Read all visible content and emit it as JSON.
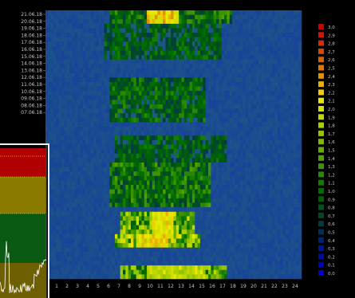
{
  "chart_data": {
    "type": "heatmap",
    "y_categories": [
      "21.06.18",
      "20.06.18",
      "19.06.18",
      "18.06.18",
      "17.06.18",
      "16.06.18",
      "15.06.18",
      "14.06.18",
      "13.06.18",
      "12.06.18",
      "11.06.18",
      "10.06.18",
      "09.06.18",
      "08.06.18",
      "07.06.18"
    ],
    "x_ticks": [
      "1",
      "2",
      "3",
      "4",
      "5",
      "6",
      "7",
      "8",
      "9",
      "10",
      "11",
      "12",
      "13",
      "14",
      "15",
      "16",
      "17",
      "18",
      "19",
      "20",
      "21",
      "22",
      "23",
      "24"
    ],
    "legend": {
      "labels": [
        "3,0",
        "2,9",
        "2,8",
        "2,7",
        "2,6",
        "2,5",
        "2,4",
        "2,3",
        "2,2",
        "2,1",
        "2,0",
        "1,9",
        "1,8",
        "1,7",
        "1,6",
        "1,5",
        "1,4",
        "1,3",
        "1,2",
        "1,1",
        "1,0",
        "0,9",
        "0,8",
        "0,7",
        "0,6",
        "0,5",
        "0,4",
        "0,3",
        "0,2",
        "0,1",
        "0,0"
      ],
      "colors": [
        "#c80000",
        "#cc1800",
        "#d03000",
        "#d44800",
        "#d86000",
        "#dc7800",
        "#e09000",
        "#e8b000",
        "#f0d000",
        "#e8e800",
        "#d4e000",
        "#c0d800",
        "#aad000",
        "#94c400",
        "#7eb800",
        "#68ac00",
        "#52a000",
        "#3c9400",
        "#288800",
        "#147c00",
        "#006e00",
        "#00600a",
        "#005418",
        "#004828",
        "#003c40",
        "#003058",
        "#002470",
        "#001888",
        "#000ca0",
        "#0004b8",
        "#0000d0"
      ]
    },
    "value_range": [
      0,
      3.0
    ],
    "rows": 60,
    "columns": 96,
    "active_bands_hours": [
      [
        6.5,
        18.0
      ]
    ],
    "peak_values": [
      2.3,
      2.2,
      2.2,
      2.0
    ]
  },
  "colors": {
    "background": "#000000",
    "low": "#1a38a8",
    "inset_red": "#b00000",
    "inset_olive": "#8a7a00",
    "inset_green": "#0a5a14"
  }
}
